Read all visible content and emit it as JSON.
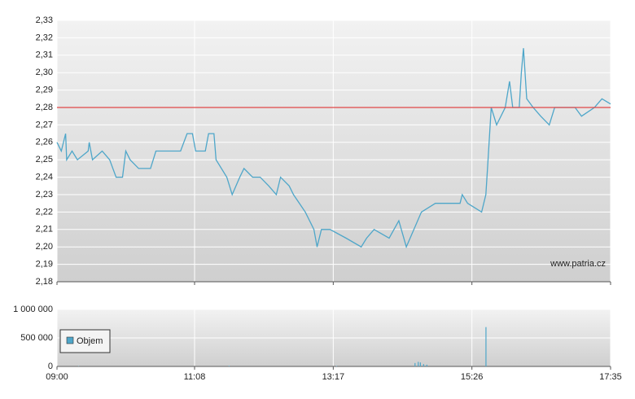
{
  "chart_data": [
    {
      "type": "line",
      "xlim": [
        540,
        1055
      ],
      "x": [
        540,
        544,
        548,
        549,
        554,
        559,
        569,
        570,
        573,
        582,
        589,
        595,
        601,
        604,
        608,
        616,
        627,
        632,
        655,
        661,
        666,
        669,
        678,
        681,
        686,
        688,
        698,
        703,
        710,
        714,
        722,
        729,
        737,
        744,
        748,
        756,
        760,
        771,
        779,
        782,
        786,
        794,
        809,
        823,
        828,
        835,
        849,
        858,
        865,
        872,
        879,
        892,
        915,
        917,
        922,
        935,
        939,
        941,
        944,
        949,
        957,
        961,
        964,
        970,
        972,
        974,
        977,
        983,
        990,
        998,
        1003,
        1015,
        1022,
        1028,
        1040,
        1047,
        1055
      ],
      "series": [
        {
          "color": "#4ea6c9",
          "values": [
            2.26,
            2.255,
            2.265,
            2.25,
            2.255,
            2.25,
            2.255,
            2.26,
            2.25,
            2.255,
            2.25,
            2.24,
            2.24,
            2.255,
            2.25,
            2.245,
            2.245,
            2.255,
            2.255,
            2.265,
            2.265,
            2.255,
            2.255,
            2.265,
            2.265,
            2.25,
            2.24,
            2.23,
            2.24,
            2.245,
            2.24,
            2.24,
            2.235,
            2.23,
            2.24,
            2.235,
            2.23,
            2.22,
            2.21,
            2.2,
            2.21,
            2.21,
            2.205,
            2.2,
            2.205,
            2.21,
            2.205,
            2.215,
            2.2,
            2.21,
            2.22,
            2.225,
            2.225,
            2.23,
            2.225,
            2.22,
            2.23,
            2.25,
            2.28,
            2.27,
            2.28,
            2.295,
            2.28,
            2.28,
            2.3,
            2.314,
            2.285,
            2.28,
            2.275,
            2.27,
            2.28,
            2.28,
            2.28,
            2.275,
            2.28,
            2.285,
            2.282
          ]
        }
      ],
      "reference_line": {
        "value": 2.28,
        "color": "#e04848"
      },
      "ylim": [
        2.18,
        2.33
      ],
      "yticks": [
        {
          "value": 2.18,
          "label": "2,18"
        },
        {
          "value": 2.19,
          "label": "2,19"
        },
        {
          "value": 2.2,
          "label": "2,20"
        },
        {
          "value": 2.21,
          "label": "2,21"
        },
        {
          "value": 2.22,
          "label": "2,22"
        },
        {
          "value": 2.23,
          "label": "2,23"
        },
        {
          "value": 2.24,
          "label": "2,24"
        },
        {
          "value": 2.25,
          "label": "2,25"
        },
        {
          "value": 2.26,
          "label": "2,26"
        },
        {
          "value": 2.27,
          "label": "2,27"
        },
        {
          "value": 2.28,
          "label": "2,28"
        },
        {
          "value": 2.29,
          "label": "2,29"
        },
        {
          "value": 2.3,
          "label": "2,30"
        },
        {
          "value": 2.31,
          "label": "2,31"
        },
        {
          "value": 2.32,
          "label": "2,32"
        },
        {
          "value": 2.33,
          "label": "2,33"
        }
      ],
      "grid": true,
      "watermark": "www.patria.cz"
    },
    {
      "type": "bar",
      "xlim": [
        540,
        1055
      ],
      "xticks": [
        {
          "value": 540,
          "label": "09:00"
        },
        {
          "value": 668,
          "label": "11:08"
        },
        {
          "value": 797,
          "label": "13:17"
        },
        {
          "value": 926,
          "label": "15:26"
        },
        {
          "value": 1055,
          "label": "17:35"
        }
      ],
      "series": [
        {
          "name": "Objem",
          "color": "#4ea6c9",
          "x": [
            560,
            700,
            800,
            873,
            876,
            878,
            881,
            884,
            939
          ],
          "values": [
            5000,
            10000,
            8000,
            60000,
            80000,
            70000,
            40000,
            30000,
            690000
          ]
        }
      ],
      "ylim": [
        0,
        1000000
      ],
      "yticks": [
        0,
        {
          "value": 500000,
          "label": "500 000"
        },
        {
          "value": 1000000,
          "label": "1 000 000"
        }
      ],
      "grid": true
    }
  ]
}
